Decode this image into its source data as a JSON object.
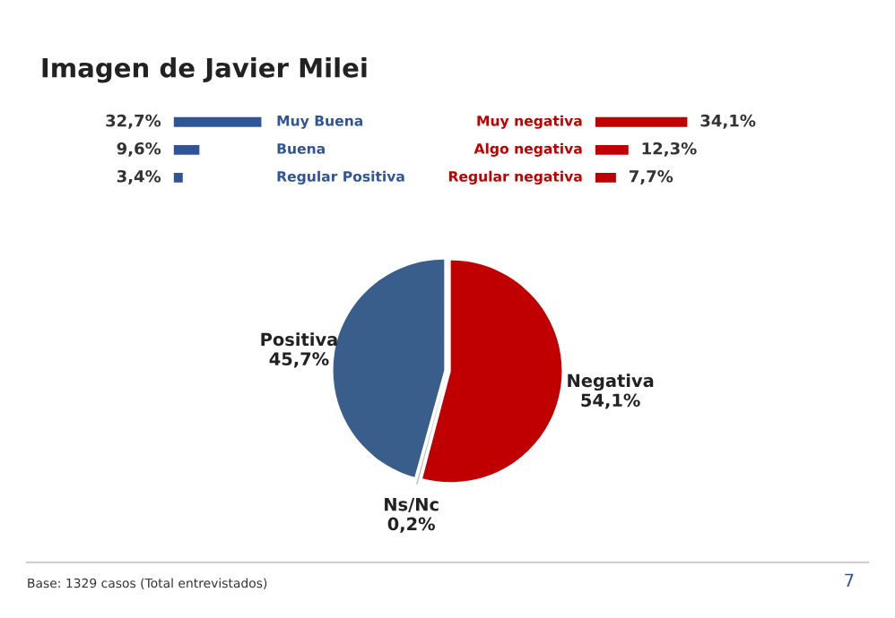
{
  "chart_data": [
    {
      "type": "bar",
      "orientation": "horizontal",
      "title": "Imagen de Javier Milei",
      "categories": [
        "Muy Buena",
        "Buena",
        "Regular Positiva"
      ],
      "values": [
        32.7,
        9.6,
        3.4
      ],
      "value_labels": [
        "32,7%",
        "9,6%",
        "3,4%"
      ],
      "colors": [
        "#2f5597",
        "#2f5597",
        "#2f5597"
      ]
    },
    {
      "type": "bar",
      "orientation": "horizontal",
      "categories": [
        "Muy negativa",
        "Algo negativa",
        "Regular negativa"
      ],
      "values": [
        34.1,
        12.3,
        7.7
      ],
      "value_labels": [
        "34,1%",
        "12,3%",
        "7,7%"
      ],
      "colors": [
        "#c00000",
        "#c00000",
        "#c00000"
      ]
    },
    {
      "type": "pie",
      "categories": [
        "Negativa",
        "Ns/Nc",
        "Positiva"
      ],
      "values": [
        54.1,
        0.2,
        45.7
      ],
      "value_labels": [
        "54,1%",
        "0,2%",
        "45,7%"
      ],
      "colors": [
        "#c00000",
        "#bfbfbf",
        "#3a5e8c"
      ],
      "annotations": [
        "Base: 1329 casos (Total entrevistados)",
        "7"
      ]
    }
  ]
}
